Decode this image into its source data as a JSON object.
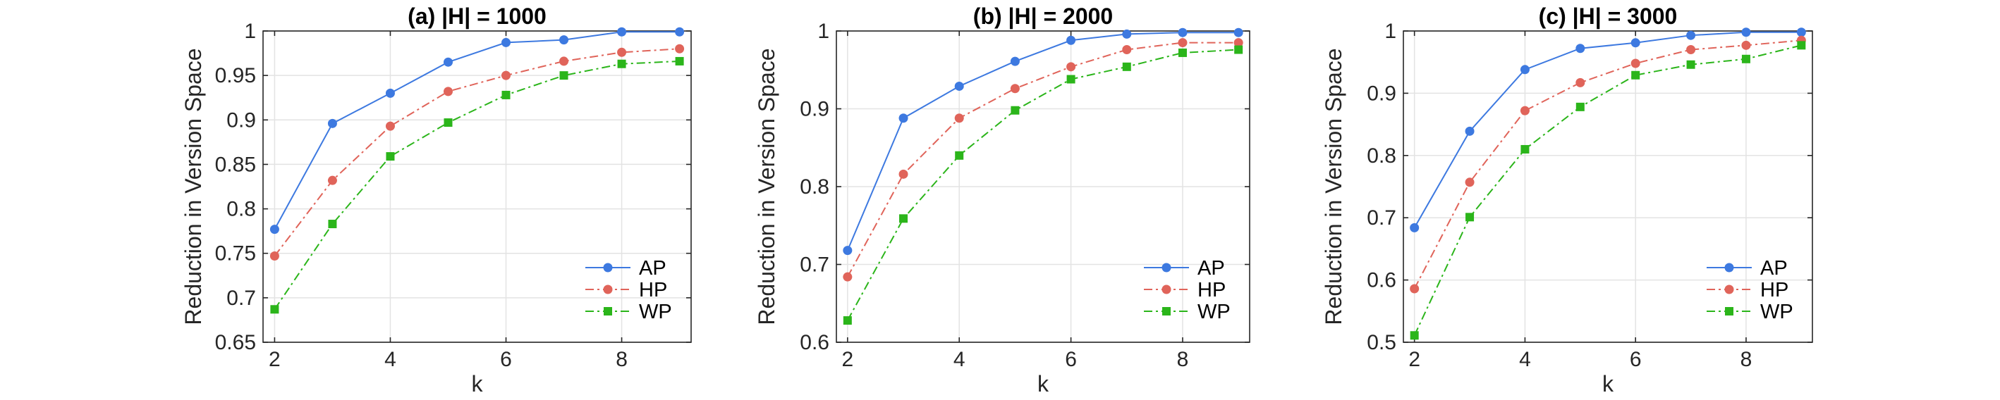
{
  "chart_data": [
    {
      "type": "line",
      "title": "(a) |H| = 1000",
      "xlabel": "k",
      "ylabel": "Reduction in Version Space",
      "xlim": [
        1.8,
        9.2
      ],
      "ylim": [
        0.65,
        1.0
      ],
      "xticks": [
        2,
        4,
        6,
        8
      ],
      "yticks": [
        0.65,
        0.7,
        0.75,
        0.8,
        0.85,
        0.9,
        0.95,
        1
      ],
      "ytick_labels": [
        "0.65",
        "0.7",
        "0.75",
        "0.8",
        "0.85",
        "0.9",
        "0.95",
        "1"
      ],
      "grid": true,
      "legend_position": "bottom-right",
      "x": [
        2,
        3,
        4,
        5,
        6,
        7,
        8,
        9
      ],
      "series": [
        {
          "name": "AP",
          "color": "#3d79e0",
          "line": "solid",
          "marker": "circle",
          "values": [
            0.777,
            0.896,
            0.93,
            0.965,
            0.987,
            0.99,
            0.999,
            0.999
          ]
        },
        {
          "name": "HP",
          "color": "#e0645a",
          "line": "dashdot",
          "marker": "circle",
          "values": [
            0.747,
            0.832,
            0.893,
            0.932,
            0.95,
            0.966,
            0.976,
            0.98
          ]
        },
        {
          "name": "WP",
          "color": "#2bb51a",
          "line": "dashdot",
          "marker": "square",
          "values": [
            0.687,
            0.783,
            0.859,
            0.897,
            0.928,
            0.95,
            0.963,
            0.966
          ]
        }
      ]
    },
    {
      "type": "line",
      "title": "(b) |H| = 2000",
      "xlabel": "k",
      "ylabel": "Reduction in Version Space",
      "xlim": [
        1.8,
        9.2
      ],
      "ylim": [
        0.6,
        1.0
      ],
      "xticks": [
        2,
        4,
        6,
        8
      ],
      "yticks": [
        0.6,
        0.7,
        0.8,
        0.9,
        1
      ],
      "ytick_labels": [
        "0.6",
        "0.7",
        "0.8",
        "0.9",
        "1"
      ],
      "grid": true,
      "legend_position": "bottom-right",
      "x": [
        2,
        3,
        4,
        5,
        6,
        7,
        8,
        9
      ],
      "series": [
        {
          "name": "AP",
          "color": "#3d79e0",
          "line": "solid",
          "marker": "circle",
          "values": [
            0.718,
            0.888,
            0.929,
            0.961,
            0.988,
            0.996,
            0.998,
            0.998
          ]
        },
        {
          "name": "HP",
          "color": "#e0645a",
          "line": "dashdot",
          "marker": "circle",
          "values": [
            0.684,
            0.816,
            0.888,
            0.926,
            0.954,
            0.976,
            0.985,
            0.985
          ]
        },
        {
          "name": "WP",
          "color": "#2bb51a",
          "line": "dashdot",
          "marker": "square",
          "values": [
            0.628,
            0.759,
            0.84,
            0.898,
            0.938,
            0.954,
            0.972,
            0.976
          ]
        }
      ]
    },
    {
      "type": "line",
      "title": "(c) |H| = 3000",
      "xlabel": "k",
      "ylabel": "Reduction in Version Space",
      "xlim": [
        1.8,
        9.2
      ],
      "ylim": [
        0.5,
        1.0
      ],
      "xticks": [
        2,
        4,
        6,
        8
      ],
      "yticks": [
        0.5,
        0.6,
        0.7,
        0.8,
        0.9,
        1
      ],
      "ytick_labels": [
        "0.5",
        "0.6",
        "0.7",
        "0.8",
        "0.9",
        "1"
      ],
      "grid": true,
      "legend_position": "bottom-right",
      "x": [
        2,
        3,
        4,
        5,
        6,
        7,
        8,
        9
      ],
      "series": [
        {
          "name": "AP",
          "color": "#3d79e0",
          "line": "solid",
          "marker": "circle",
          "values": [
            0.684,
            0.839,
            0.938,
            0.972,
            0.981,
            0.993,
            0.998,
            0.998
          ]
        },
        {
          "name": "HP",
          "color": "#e0645a",
          "line": "dashdot",
          "marker": "circle",
          "values": [
            0.586,
            0.757,
            0.872,
            0.917,
            0.948,
            0.97,
            0.977,
            0.985
          ]
        },
        {
          "name": "WP",
          "color": "#2bb51a",
          "line": "dashdot",
          "marker": "square",
          "values": [
            0.511,
            0.701,
            0.81,
            0.878,
            0.929,
            0.946,
            0.955,
            0.977
          ]
        }
      ]
    }
  ]
}
